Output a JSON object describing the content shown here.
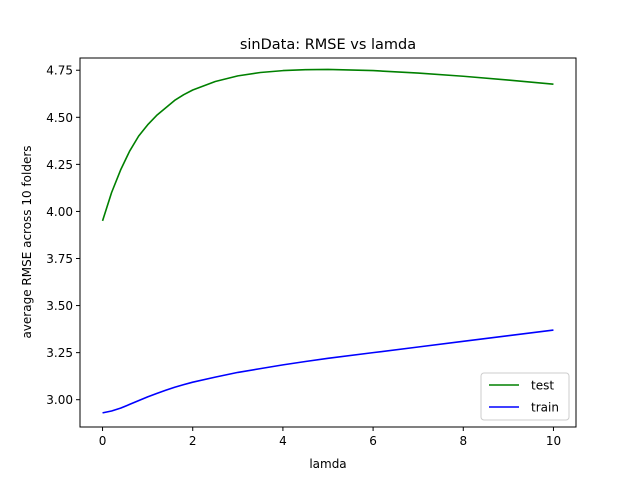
{
  "chart_data": {
    "type": "line",
    "title": "sinData: RMSE vs lamda",
    "xlabel": "lamda",
    "ylabel": "average RMSE across 10 folders",
    "xlim": [
      -0.5,
      10.5
    ],
    "ylim": [
      2.855,
      4.815
    ],
    "xticks": [
      0,
      2,
      4,
      6,
      8,
      10
    ],
    "yticks": [
      3.0,
      3.25,
      3.5,
      3.75,
      4.0,
      4.25,
      4.5,
      4.75
    ],
    "xtick_labels": [
      "0",
      "2",
      "4",
      "6",
      "8",
      "10"
    ],
    "ytick_labels": [
      "3.00",
      "3.25",
      "3.50",
      "3.75",
      "4.00",
      "4.25",
      "4.50",
      "4.75"
    ],
    "grid": false,
    "legend": "lower-right",
    "x": [
      0,
      0.2,
      0.4,
      0.6,
      0.8,
      1.0,
      1.2,
      1.4,
      1.6,
      1.8,
      2.0,
      2.5,
      3.0,
      3.5,
      4.0,
      4.5,
      5.0,
      6.0,
      7.0,
      8.0,
      9.0,
      10.0
    ],
    "series": [
      {
        "name": "test",
        "color": "#008000",
        "values": [
          3.95,
          4.1,
          4.22,
          4.32,
          4.4,
          4.46,
          4.51,
          4.55,
          4.59,
          4.62,
          4.645,
          4.69,
          4.72,
          4.738,
          4.748,
          4.753,
          4.754,
          4.748,
          4.735,
          4.718,
          4.698,
          4.676
        ]
      },
      {
        "name": "train",
        "color": "#0000ff",
        "values": [
          2.93,
          2.94,
          2.955,
          2.975,
          2.995,
          3.015,
          3.033,
          3.05,
          3.066,
          3.08,
          3.093,
          3.12,
          3.145,
          3.165,
          3.185,
          3.203,
          3.22,
          3.25,
          3.28,
          3.31,
          3.34,
          3.37
        ]
      }
    ]
  }
}
